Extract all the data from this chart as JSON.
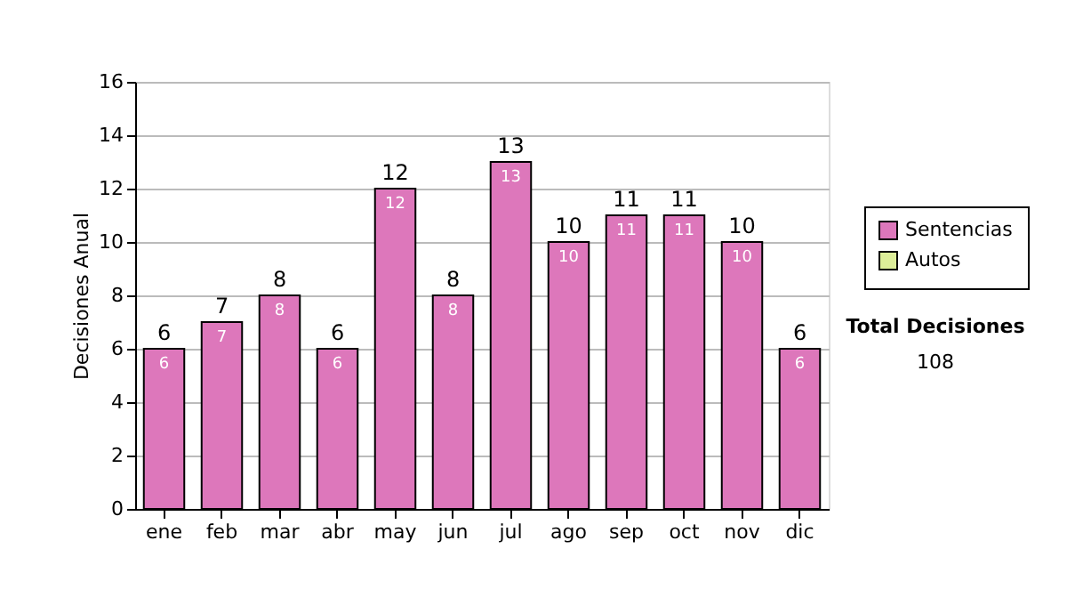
{
  "chart_data": {
    "type": "bar",
    "ylabel": "Decisiones Anual",
    "categories": [
      "ene",
      "feb",
      "mar",
      "abr",
      "may",
      "jun",
      "jul",
      "ago",
      "sep",
      "oct",
      "nov",
      "dic"
    ],
    "series": [
      {
        "name": "Sentencias",
        "color": "#dd77bb",
        "values": [
          6,
          7,
          8,
          6,
          12,
          8,
          13,
          10,
          11,
          11,
          10,
          6
        ],
        "value_labels": [
          "6",
          "7",
          "8",
          "6",
          "12",
          "8",
          "13",
          "10",
          "11",
          "11",
          "10",
          "6"
        ]
      },
      {
        "name": "Autos",
        "color": "#ddee99",
        "values": [
          null,
          null,
          null,
          null,
          null,
          null,
          null,
          null,
          null,
          null,
          null,
          null
        ]
      }
    ],
    "totals": [
      "6",
      "7",
      "8",
      "6",
      "12",
      "8",
      "13",
      "10",
      "11",
      "11",
      "10",
      "6"
    ],
    "ylim": [
      0,
      16
    ],
    "yticks": [
      0,
      2,
      4,
      6,
      8,
      10,
      12,
      14,
      16
    ],
    "grid": "y",
    "legend": "right",
    "annotations": [
      "Total Decisiones",
      "108"
    ]
  }
}
